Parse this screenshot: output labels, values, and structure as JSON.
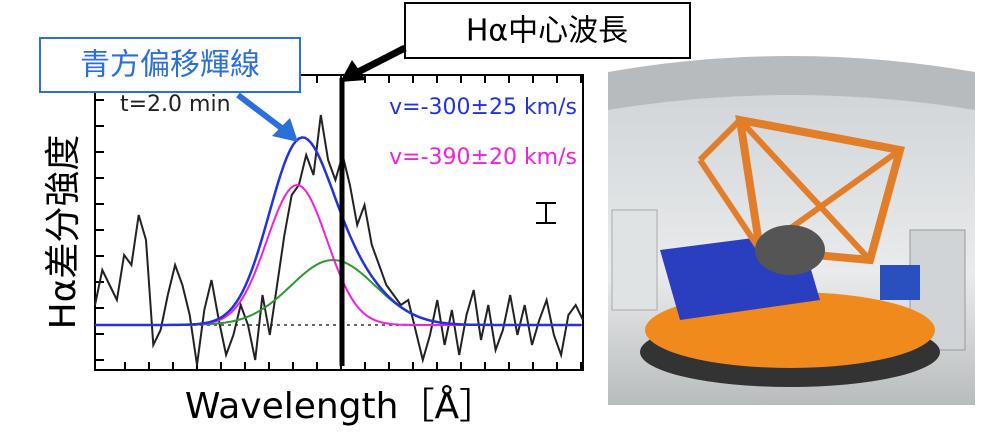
{
  "callout_blue_shift": "青方偏移輝線",
  "callout_center": "Hα中心波長",
  "plot": {
    "time_label": "t=2.0 min",
    "velocity_blue": "v=-300±25 km/s",
    "velocity_magenta": "v=-390±20 km/s",
    "y_axis_label": "Hα差分強度",
    "x_axis_label": "Wavelength［Å］"
  }
}
